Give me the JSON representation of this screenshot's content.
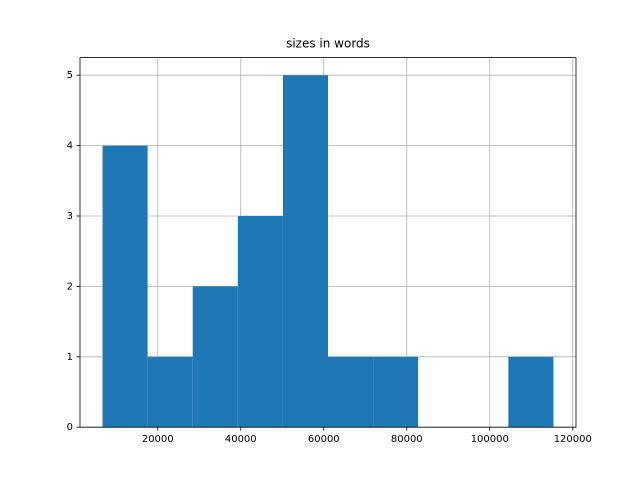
{
  "chart_data": {
    "type": "histogram",
    "title": "sizes in words",
    "bins": [
      6700,
      17564,
      28428,
      39292,
      50156,
      61020,
      71884,
      82748,
      93612,
      104476,
      115340
    ],
    "values": [
      4,
      1,
      2,
      3,
      5,
      1,
      1,
      0,
      0,
      1
    ],
    "color": "#1f77b4",
    "xlim": [
      1268,
      120772
    ],
    "xticks": [
      20000,
      40000,
      60000,
      80000,
      100000,
      120000
    ],
    "ylim": [
      0,
      5.25
    ],
    "yticks": [
      0,
      1,
      2,
      3,
      4,
      5
    ],
    "grid": true
  }
}
